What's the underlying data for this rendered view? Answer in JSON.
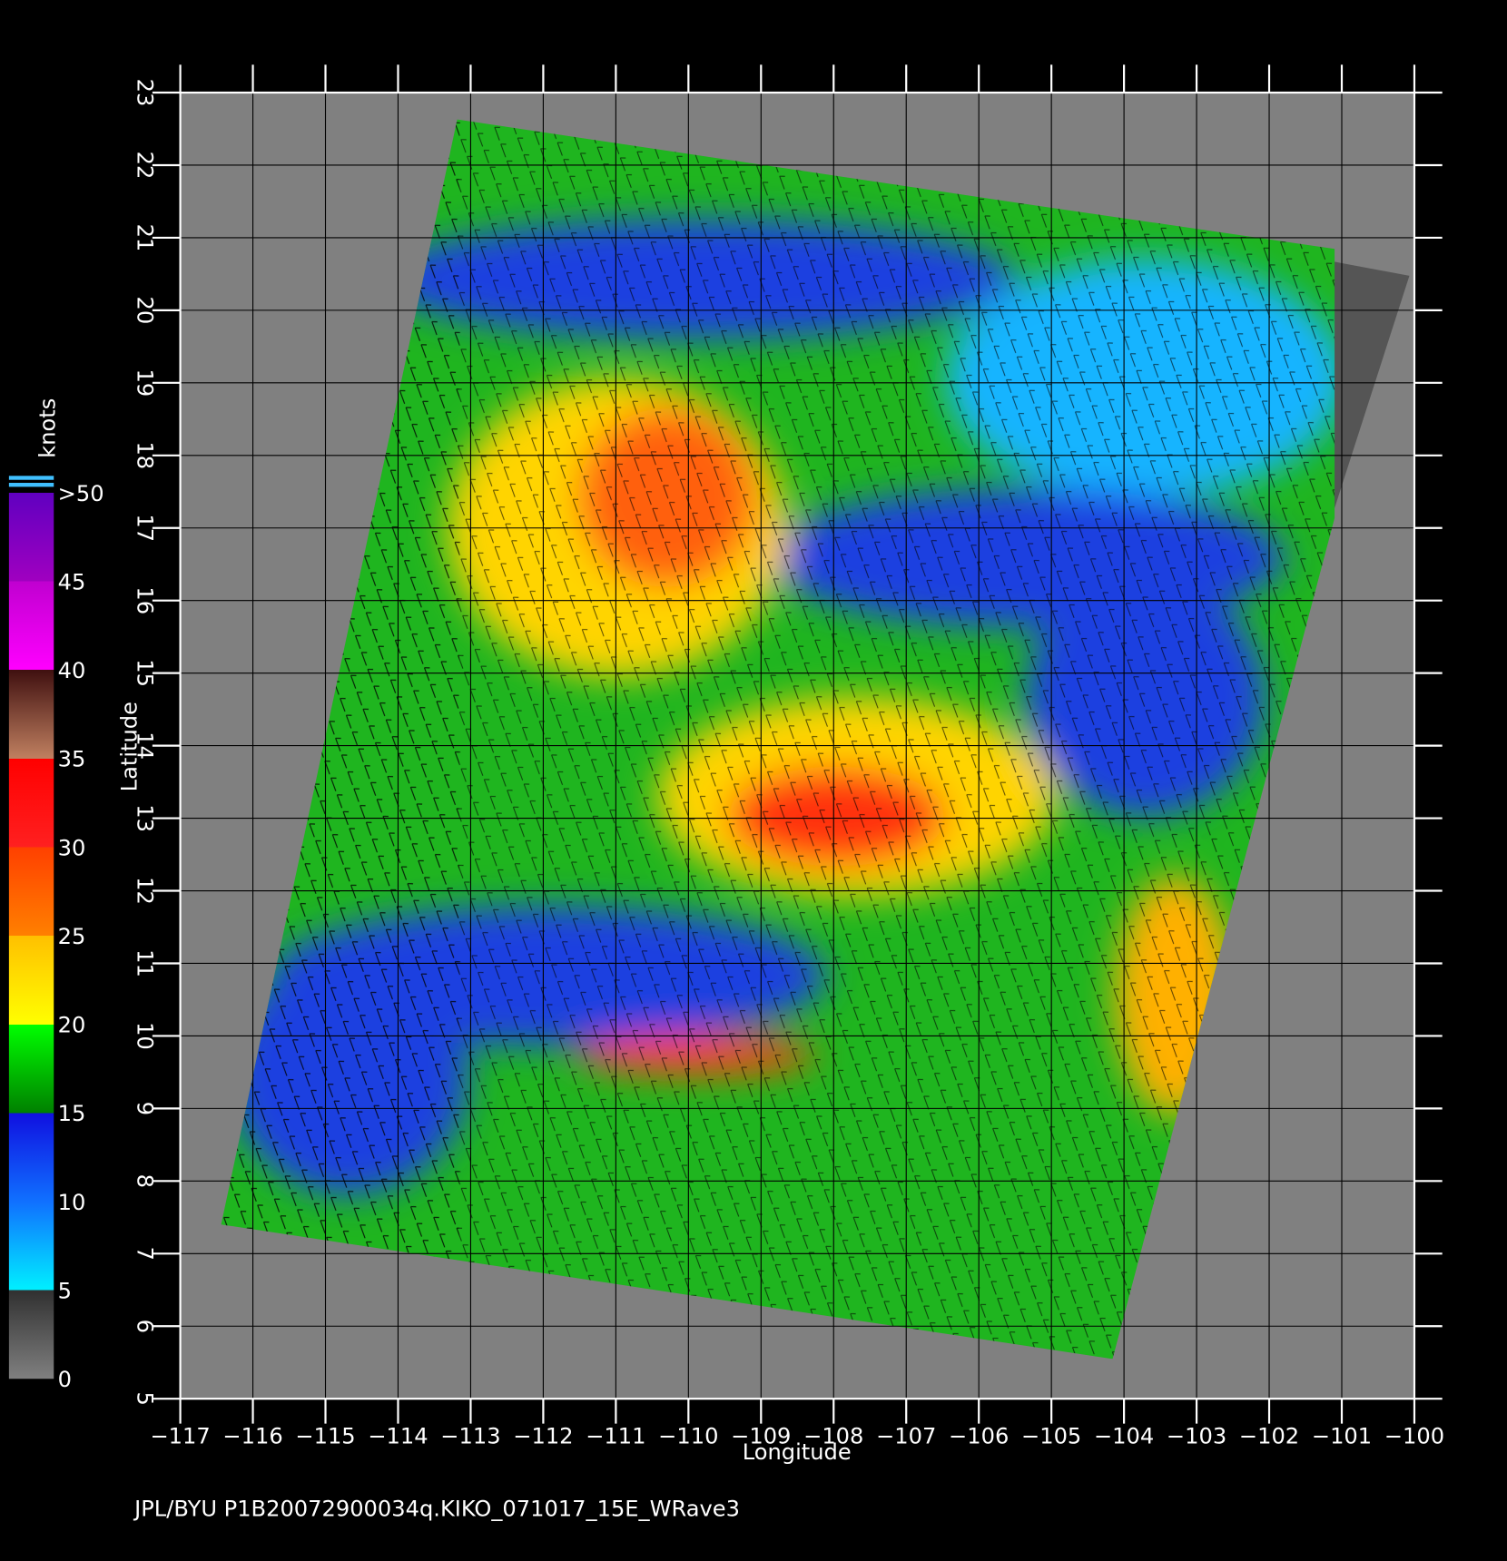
{
  "map": {
    "footer": "JPL/BYU  P1B20072900034q.KIKO_071017_15E_WRave3",
    "x_axis": {
      "label": "Longitude",
      "ticks": [
        {
          "value": -117,
          "label": "−117"
        },
        {
          "value": -116,
          "label": "−116"
        },
        {
          "value": -115,
          "label": "−115"
        },
        {
          "value": -114,
          "label": "−114"
        },
        {
          "value": -113,
          "label": "−113"
        },
        {
          "value": -112,
          "label": "−112"
        },
        {
          "value": -111,
          "label": "−111"
        },
        {
          "value": -110,
          "label": "−110"
        },
        {
          "value": -109,
          "label": "−109"
        },
        {
          "value": -108,
          "label": "−108"
        },
        {
          "value": -107,
          "label": "−107"
        },
        {
          "value": -106,
          "label": "−106"
        },
        {
          "value": -105,
          "label": "−105"
        },
        {
          "value": -104,
          "label": "−104"
        },
        {
          "value": -103,
          "label": "−103"
        },
        {
          "value": -102,
          "label": "−102"
        },
        {
          "value": -101,
          "label": "−101"
        },
        {
          "value": -100,
          "label": "−100"
        }
      ],
      "lim": [
        -117,
        -100
      ]
    },
    "y_axis": {
      "label": "Latitude",
      "ticks": [
        5,
        6,
        7,
        8,
        9,
        10,
        11,
        12,
        13,
        14,
        15,
        16,
        17,
        18,
        19,
        20,
        21,
        22,
        23
      ],
      "lim": [
        5,
        23
      ]
    },
    "colorbar": {
      "title": "knots",
      "ticks": [
        0,
        5,
        10,
        15,
        20,
        25,
        30,
        35,
        40,
        45,
        {
          "value": 50,
          "label": ">50"
        }
      ],
      "lim": [
        0,
        50
      ]
    }
  }
}
